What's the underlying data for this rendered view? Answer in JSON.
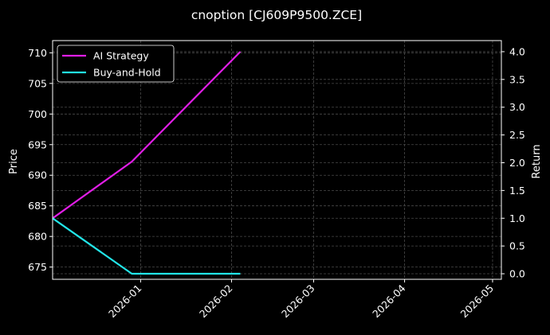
{
  "chart_data": {
    "type": "line",
    "title": "cnoption [CJ609P9500.ZCE]",
    "xlabel": "",
    "ylabel": "Price",
    "y2label": "Return",
    "xlim": [
      "2025-12-02",
      "2026-05-04"
    ],
    "ylim": [
      673,
      712
    ],
    "y2lim": [
      -0.1,
      4.2
    ],
    "x_ticks": [
      "2026-01",
      "2026-02",
      "2026-03",
      "2026-04",
      "2026-05"
    ],
    "y_ticks": [
      675,
      680,
      685,
      690,
      695,
      700,
      705,
      710
    ],
    "y2_ticks": [
      "0.0",
      "0.5",
      "1.0",
      "1.5",
      "2.0",
      "2.5",
      "3.0",
      "3.5",
      "4.0"
    ],
    "grid": true,
    "legend_position": "upper-left",
    "series": [
      {
        "name": "AI Strategy",
        "axis": "right",
        "color": "#e11ee6",
        "x": [
          "2025-12-02",
          "2025-12-29",
          "2026-02-04"
        ],
        "y": [
          1.0,
          2.02,
          4.0
        ]
      },
      {
        "name": "Buy-and-Hold",
        "axis": "right",
        "color": "#22e5e8",
        "x": [
          "2025-12-02",
          "2025-12-29",
          "2026-02-04"
        ],
        "y": [
          1.0,
          0.0,
          0.0
        ]
      }
    ],
    "colors": {
      "background": "#000000",
      "foreground": "#ffffff",
      "grid": "#4a4a4a"
    }
  }
}
